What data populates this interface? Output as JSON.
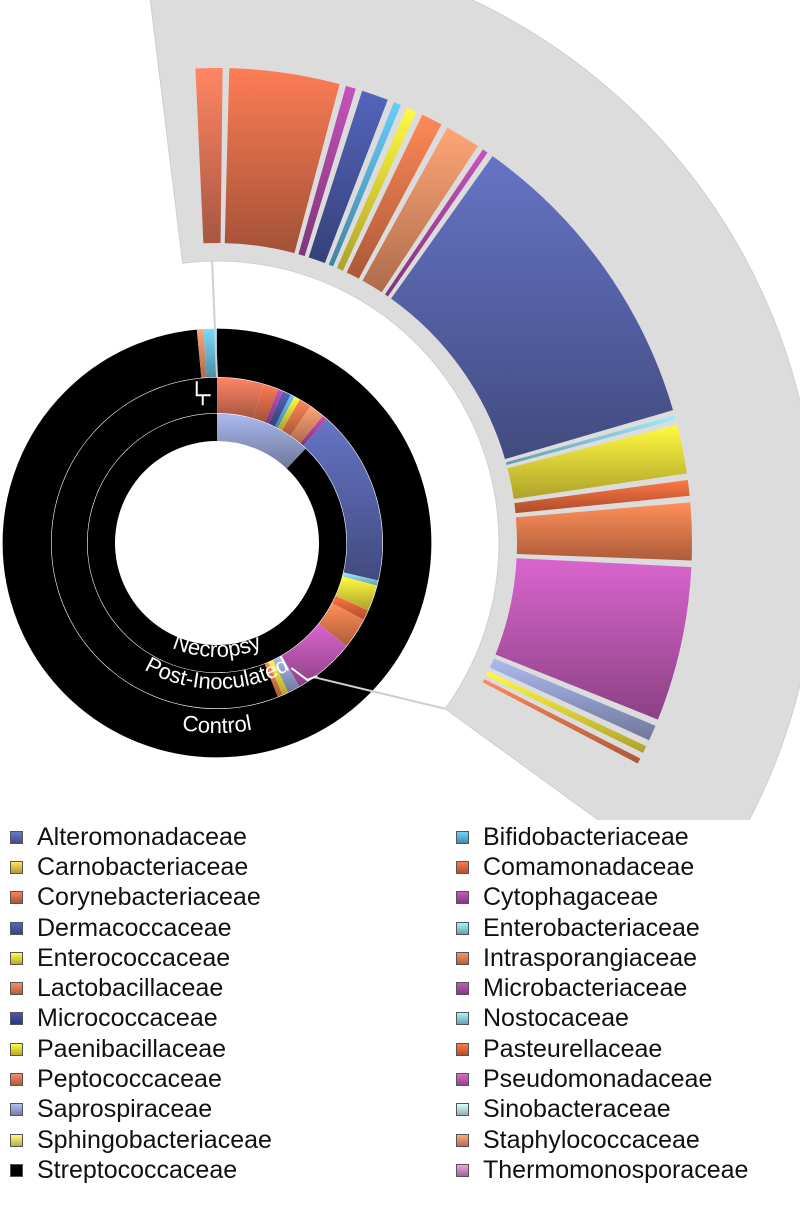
{
  "chart_data": {
    "type": "sunburst",
    "rings": [
      {
        "name": "Necropsy",
        "segments": [
          {
            "family": "Saprospiraceae",
            "value": 12,
            "color": "#9aa6d6"
          },
          {
            "family": "Streptococcaceae",
            "value": 88,
            "color": "#000000"
          }
        ]
      },
      {
        "name": "Post-Inoculated",
        "segments": [
          {
            "family": "Peptococcaceae",
            "value": 4.5,
            "color": "#e8785a"
          },
          {
            "family": "Corynebacteriaceae",
            "value": 1.5,
            "color": "#e2704c"
          },
          {
            "family": "Microbacteriaceae",
            "value": 0.5,
            "color": "#b04aa8"
          },
          {
            "family": "Dermacoccaceae",
            "value": 0.8,
            "color": "#4a5aa8"
          },
          {
            "family": "Bifidobacteriaceae",
            "value": 0.4,
            "color": "#5bb8e0"
          },
          {
            "family": "Enterococcaceae",
            "value": 0.6,
            "color": "#f2e03a"
          },
          {
            "family": "Lactobacillaceae",
            "value": 1.2,
            "color": "#ee7a4e"
          },
          {
            "family": "Staphylococcaceae",
            "value": 1.5,
            "color": "#f2946a"
          },
          {
            "family": "Cytophagaceae",
            "value": 0.5,
            "color": "#b04aa8"
          },
          {
            "family": "Alteromonadaceae",
            "value": 17,
            "color": "#5a68b0"
          },
          {
            "family": "Enterobacteriaceae",
            "value": 0.5,
            "color": "#8ed4ec"
          },
          {
            "family": "Paenibacillaceae",
            "value": 2.5,
            "color": "#f2e03a"
          },
          {
            "family": "Pasteurellaceae",
            "value": 1,
            "color": "#ee6a3c"
          },
          {
            "family": "Intrasporangiaceae",
            "value": 3,
            "color": "#f08050"
          },
          {
            "family": "Pseudomonadaceae",
            "value": 6,
            "color": "#c25ab8"
          },
          {
            "family": "Saprospiraceae",
            "value": 1.2,
            "color": "#9aa6d6"
          },
          {
            "family": "Sphingobacteriaceae",
            "value": 0.6,
            "color": "#f2e03a"
          },
          {
            "family": "Comamonadaceae",
            "value": 0.5,
            "color": "#ee7a4e"
          },
          {
            "family": "Streptococcaceae",
            "value": 55.7,
            "color": "#000000"
          }
        ]
      },
      {
        "name": "Control",
        "segments": [
          {
            "family": "Streptococcaceae",
            "value": 98.5,
            "color": "#000000"
          },
          {
            "family": "Peptococcaceae",
            "value": 0.5,
            "color": "#f2946a"
          },
          {
            "family": "Bifidobacteriaceae",
            "value": 1,
            "color": "#6cc4e8"
          }
        ]
      }
    ],
    "expanded_segments": [
      {
        "family": "Peptococcaceae",
        "value": 1.2,
        "color": "#e8785a"
      },
      {
        "family": "Corynebacteriaceae",
        "value": 4.2,
        "color": "#e2704c"
      },
      {
        "family": "Microbacteriaceae",
        "value": 0.6,
        "color": "#b04aa8"
      },
      {
        "family": "Dermacoccaceae",
        "value": 1.2,
        "color": "#4a5aa8"
      },
      {
        "family": "Bifidobacteriaceae",
        "value": 0.5,
        "color": "#5bb8e0"
      },
      {
        "family": "Enterococcaceae",
        "value": 0.6,
        "color": "#f2e03a"
      },
      {
        "family": "Lactobacillaceae",
        "value": 1.0,
        "color": "#ee7a4e"
      },
      {
        "family": "Staphylococcaceae",
        "value": 1.5,
        "color": "#f2946a"
      },
      {
        "family": "Cytophagaceae",
        "value": 0.4,
        "color": "#b04aa8"
      },
      {
        "family": "Alteromonadaceae",
        "value": 11.5,
        "color": "#5a68b0"
      },
      {
        "family": "Enterobacteriaceae",
        "value": 0.3,
        "color": "#8ed4ec"
      },
      {
        "family": "Paenibacillaceae",
        "value": 2.0,
        "color": "#f2e03a"
      },
      {
        "family": "Pasteurellaceae",
        "value": 0.8,
        "color": "#ee6a3c"
      },
      {
        "family": "Intrasporangiaceae",
        "value": 2.3,
        "color": "#f08050"
      },
      {
        "family": "Pseudomonadaceae",
        "value": 5.8,
        "color": "#c25ab8"
      },
      {
        "family": "Saprospiraceae",
        "value": 0.8,
        "color": "#9aa6d6"
      },
      {
        "family": "Sphingobacteriaceae",
        "value": 0.5,
        "color": "#f2e03a"
      },
      {
        "family": "Comamonadaceae",
        "value": 0.4,
        "color": "#ee7a4e"
      }
    ],
    "legend": [
      {
        "label": "Alteromonadaceae",
        "color": "#5a68b0"
      },
      {
        "label": "Carnobacteriaceae",
        "color": "#f2c84a"
      },
      {
        "label": "Corynebacteriaceae",
        "color": "#e2704c"
      },
      {
        "label": "Dermacoccaceae",
        "color": "#4a5aa8"
      },
      {
        "label": "Enterococcaceae",
        "color": "#f2e03a"
      },
      {
        "label": "Lactobacillaceae",
        "color": "#ee7a4e"
      },
      {
        "label": "Micrococcaceae",
        "color": "#3e4a9e"
      },
      {
        "label": "Paenibacillaceae",
        "color": "#f2e03a"
      },
      {
        "label": "Peptococcaceae",
        "color": "#e8785a"
      },
      {
        "label": "Saprospiraceae",
        "color": "#9aa6d6"
      },
      {
        "label": "Sphingobacteriaceae",
        "color": "#f6e46a"
      },
      {
        "label": "Streptococcaceae",
        "color": "#000000"
      },
      {
        "label": "Bifidobacteriaceae",
        "color": "#5bb8e0"
      },
      {
        "label": "Comamonadaceae",
        "color": "#ee6a3c"
      },
      {
        "label": "Cytophagaceae",
        "color": "#b04aa8"
      },
      {
        "label": "Enterobacteriaceae",
        "color": "#8ed4ec"
      },
      {
        "label": "Intrasporangiaceae",
        "color": "#f08050"
      },
      {
        "label": "Microbacteriaceae",
        "color": "#b04aa8"
      },
      {
        "label": "Nostocaceae",
        "color": "#8ed4ec"
      },
      {
        "label": "Pasteurellaceae",
        "color": "#ee6a3c"
      },
      {
        "label": "Pseudomonadaceae",
        "color": "#c25ab8"
      },
      {
        "label": "Sinobacteraceae",
        "color": "#bfe6f4"
      },
      {
        "label": "Staphylococcaceae",
        "color": "#f2946a"
      },
      {
        "label": "Thermomonosporaceae",
        "color": "#d48ac8"
      }
    ]
  }
}
